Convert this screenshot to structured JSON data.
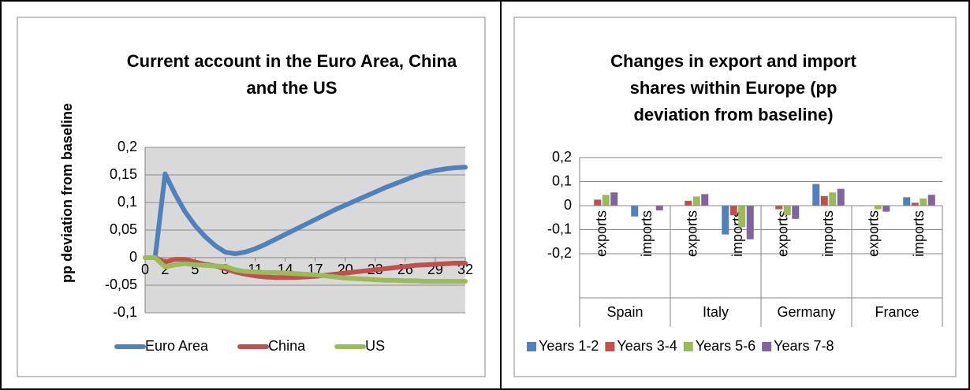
{
  "chart_data": [
    {
      "type": "line",
      "title": "Current account in the Euro Area, China and the US",
      "y_label": "pp deviation from baseline",
      "x": [
        0,
        1,
        2,
        3,
        4,
        5,
        6,
        7,
        8,
        9,
        10,
        11,
        12,
        13,
        14,
        15,
        16,
        17,
        18,
        19,
        20,
        21,
        22,
        23,
        24,
        25,
        26,
        27,
        28,
        29,
        30,
        31,
        32
      ],
      "xlim": [
        0,
        32
      ],
      "xticks": [
        0,
        2,
        5,
        8,
        11,
        14,
        17,
        20,
        23,
        26,
        29,
        32
      ],
      "ylim": [
        -0.1,
        0.2
      ],
      "yticks": [
        {
          "value": -0.1,
          "label": "-0,1"
        },
        {
          "value": -0.05,
          "label": "-0,05"
        },
        0,
        {
          "value": 0.05,
          "label": "0,05"
        },
        {
          "value": 0.1,
          "label": "0,1"
        },
        {
          "value": 0.15,
          "label": "0,15"
        },
        {
          "value": 0.2,
          "label": "0,2"
        }
      ],
      "grid": true,
      "legend": "bottom",
      "series": [
        {
          "name": "Euro Area",
          "color": "#4f81bd",
          "values": [
            0,
            0,
            0.152,
            0.115,
            0.083,
            0.058,
            0.038,
            0.022,
            0.01,
            0.007,
            0.01,
            0.016,
            0.024,
            0.033,
            0.042,
            0.051,
            0.06,
            0.069,
            0.078,
            0.087,
            0.095,
            0.103,
            0.111,
            0.119,
            0.127,
            0.134,
            0.141,
            0.148,
            0.154,
            0.158,
            0.161,
            0.163,
            0.164
          ]
        },
        {
          "name": "China",
          "color": "#c0504d",
          "values": [
            0,
            0,
            -0.008,
            -0.003,
            -0.003,
            -0.008,
            -0.012,
            -0.015,
            -0.02,
            -0.026,
            -0.03,
            -0.033,
            -0.035,
            -0.036,
            -0.036,
            -0.036,
            -0.035,
            -0.034,
            -0.032,
            -0.03,
            -0.028,
            -0.026,
            -0.024,
            -0.022,
            -0.02,
            -0.018,
            -0.016,
            -0.014,
            -0.013,
            -0.012,
            -0.011,
            -0.01,
            -0.01
          ]
        },
        {
          "name": "US",
          "color": "#9bbb59",
          "values": [
            0,
            0,
            -0.017,
            -0.013,
            -0.011,
            -0.013,
            -0.014,
            -0.015,
            -0.016,
            -0.022,
            -0.025,
            -0.026,
            -0.027,
            -0.027,
            -0.028,
            -0.029,
            -0.03,
            -0.031,
            -0.033,
            -0.035,
            -0.037,
            -0.038,
            -0.039,
            -0.04,
            -0.041,
            -0.041,
            -0.042,
            -0.042,
            -0.043,
            -0.043,
            -0.043,
            -0.043,
            -0.043
          ]
        }
      ]
    },
    {
      "type": "bar",
      "title": "Changes in export and import shares within Europe (pp deviation from baseline)",
      "categories": [
        "exports",
        "imports",
        "exports",
        "imports",
        "exports",
        "imports",
        "exports",
        "imports"
      ],
      "category_groups": [
        "Spain",
        "Italy",
        "Germany",
        "France"
      ],
      "ylim": [
        -0.2,
        0.2
      ],
      "yticks": [
        {
          "value": -0.2,
          "label": "-0,2"
        },
        {
          "value": -0.1,
          "label": "-0,1"
        },
        0,
        {
          "value": 0.1,
          "label": "0,1"
        },
        {
          "value": 0.2,
          "label": "0,2"
        }
      ],
      "grid": true,
      "legend": "bottom",
      "series": [
        {
          "name": "Years 1-2",
          "color": "#4f81bd",
          "values": [
            0,
            -0.045,
            0,
            -0.12,
            0,
            0.09,
            -0.002,
            0.035
          ]
        },
        {
          "name": "Years 3-4",
          "color": "#c0504d",
          "values": [
            0.025,
            0,
            0.02,
            -0.04,
            -0.015,
            0.04,
            0,
            0.012
          ]
        },
        {
          "name": "Years 5-6",
          "color": "#9bbb59",
          "values": [
            0.045,
            0,
            0.038,
            -0.09,
            -0.04,
            0.055,
            -0.015,
            0.03
          ]
        },
        {
          "name": "Years 7-8",
          "color": "#8064a2",
          "values": [
            0.055,
            -0.02,
            0.048,
            -0.14,
            -0.055,
            0.07,
            -0.025,
            0.045
          ]
        }
      ]
    }
  ]
}
